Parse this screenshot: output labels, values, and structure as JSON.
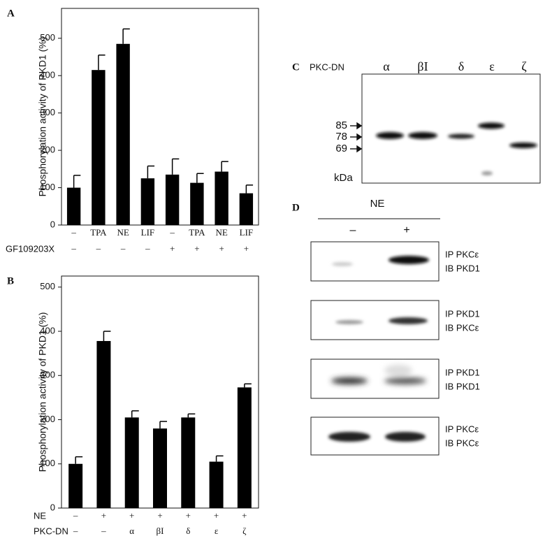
{
  "chart_data": [
    {
      "type": "bar",
      "panel_label": "A",
      "y_label": "Phosphorylation activity of PKD1 (%)",
      "categories": [
        "–",
        "TPA",
        "NE",
        "LIF",
        "–",
        "TPA",
        "NE",
        "LIF"
      ],
      "values": [
        100,
        415,
        485,
        125,
        135,
        113,
        143,
        85
      ],
      "errors": [
        33,
        40,
        40,
        33,
        42,
        25,
        27,
        22
      ],
      "second_row": {
        "name": "GF109203X",
        "labels": [
          "–",
          "–",
          "–",
          "–",
          "+",
          "+",
          "+",
          "+"
        ]
      },
      "color": "#000000",
      "ylim": [
        0,
        580
      ],
      "yticks": [
        0,
        100,
        200,
        300,
        400,
        500
      ]
    },
    {
      "type": "bar",
      "panel_label": "B",
      "y_label": "Phosphorylation activity of PKD1 (%)",
      "first_row_name": "NE",
      "categories": [
        "–",
        "+",
        "+",
        "+",
        "+",
        "+",
        "+"
      ],
      "values": [
        100,
        378,
        205,
        180,
        205,
        105,
        273
      ],
      "errors": [
        16,
        22,
        15,
        16,
        8,
        13,
        8
      ],
      "second_row": {
        "name": "PKC-DN",
        "labels": [
          "–",
          "–",
          "α",
          "βI",
          "δ",
          "ε",
          "ζ"
        ]
      },
      "color": "#000000",
      "ylim": [
        0,
        525
      ],
      "yticks": [
        0,
        100,
        200,
        300,
        400,
        500
      ]
    }
  ],
  "panel_c": {
    "label": "C",
    "header": "PKC-DN",
    "lanes": [
      "α",
      "βI",
      "δ",
      "ε",
      "ζ"
    ],
    "markers": [
      "85",
      "78",
      "69"
    ],
    "unit": "kDa"
  },
  "panel_d": {
    "label": "D",
    "treatment": "NE",
    "lanes": [
      "–",
      "+"
    ],
    "blots": [
      [
        "IP PKCε",
        "IB PKD1"
      ],
      [
        "IP PKD1",
        "IB PKCε"
      ],
      [
        "IP PKD1",
        "IB PKD1"
      ],
      [
        "IP PKCε",
        "IB PKCε"
      ]
    ]
  }
}
